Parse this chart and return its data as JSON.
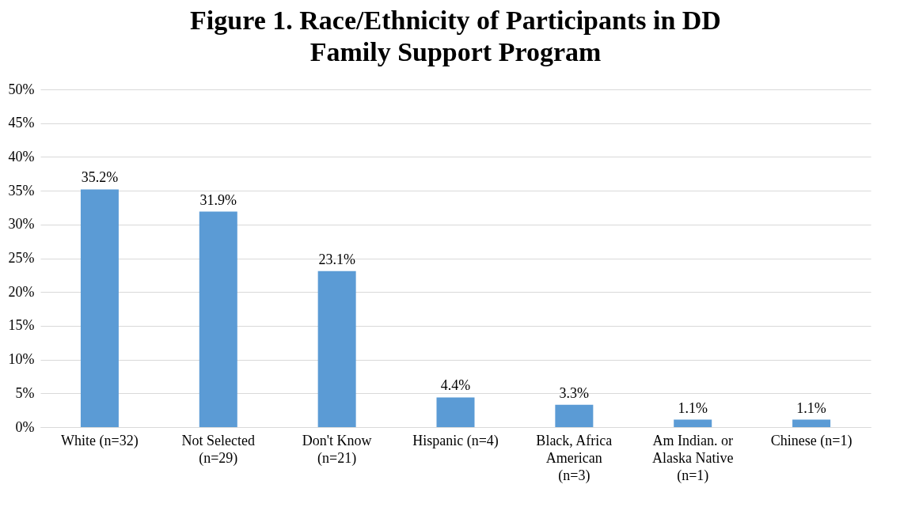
{
  "chart_data": {
    "type": "bar",
    "title": "Figure 1. Race/Ethnicity of Participants in DD Family Support Program",
    "categories": [
      "White (n=32)",
      "Not Selected (n=29)",
      "Don't Know (n=21)",
      "Hispanic (n=4)",
      "Black, Africa American (n=3)",
      "Am Indian. or Alaska Native (n=1)",
      "Chinese (n=1)"
    ],
    "values": [
      35.2,
      31.9,
      23.1,
      4.4,
      3.3,
      1.1,
      1.1
    ],
    "value_labels": [
      "35.2%",
      "31.9%",
      "23.1%",
      "4.4%",
      "3.3%",
      "1.1%",
      "1.1%"
    ],
    "color": "#5b9bd5",
    "ylim": [
      0,
      50
    ],
    "yticks": [
      {
        "value": 0,
        "label": "0%"
      },
      {
        "value": 5,
        "label": "5%"
      },
      {
        "value": 10,
        "label": "10%"
      },
      {
        "value": 15,
        "label": "15%"
      },
      {
        "value": 20,
        "label": "20%"
      },
      {
        "value": 25,
        "label": "25%"
      },
      {
        "value": 30,
        "label": "30%"
      },
      {
        "value": 35,
        "label": "35%"
      },
      {
        "value": 40,
        "label": "40%"
      },
      {
        "value": 45,
        "label": "45%"
      },
      {
        "value": 50,
        "label": "50%"
      }
    ],
    "grid": "y"
  }
}
